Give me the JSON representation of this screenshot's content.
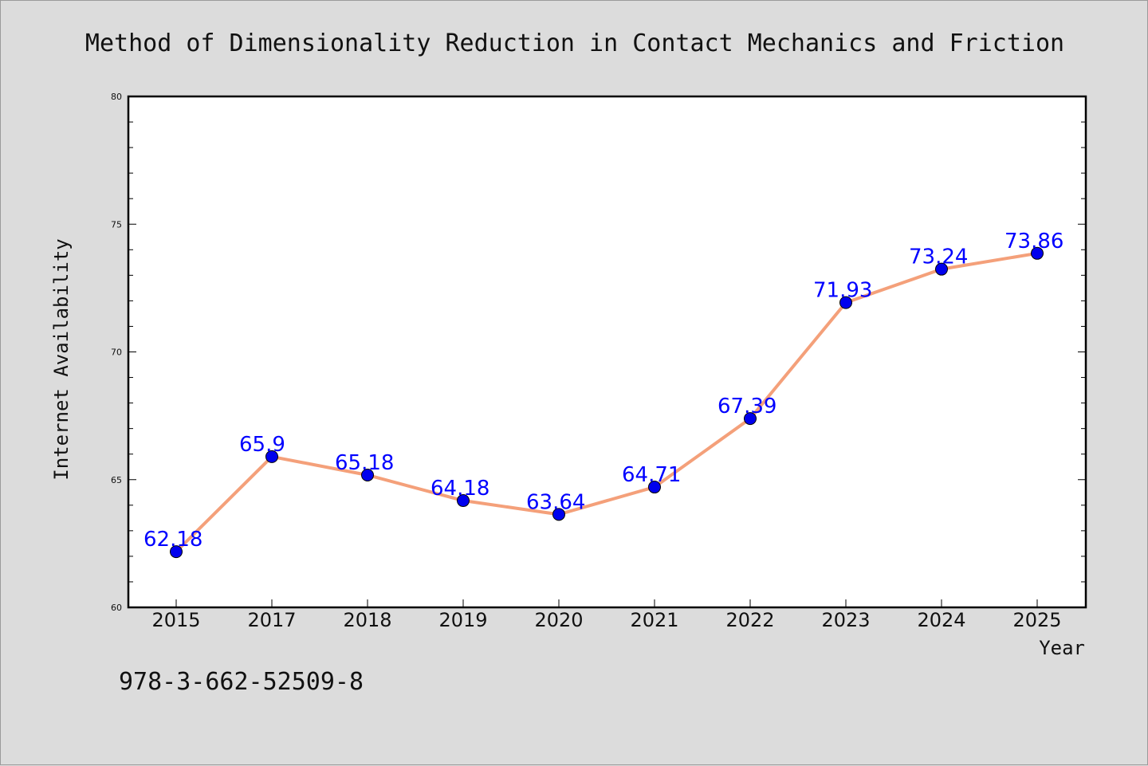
{
  "chart_data": {
    "type": "line",
    "title": "Method of Dimensionality Reduction in Contact Mechanics and Friction",
    "xlabel": "Year",
    "ylabel": "Internet Availability",
    "categories": [
      "2015",
      "2017",
      "2018",
      "2019",
      "2020",
      "2021",
      "2022",
      "2023",
      "2024",
      "2025"
    ],
    "values": [
      62.18,
      65.9,
      65.18,
      64.18,
      63.64,
      64.71,
      67.39,
      71.93,
      73.24,
      73.86
    ],
    "data_labels": [
      "62.18",
      "65.9",
      "65.18",
      "64.18",
      "63.64",
      "64.71",
      "67.39",
      "71.93",
      "73.24",
      "73.86"
    ],
    "ylim": [
      60,
      80
    ],
    "yticks": [
      60,
      65,
      70,
      75,
      80
    ],
    "grid": false,
    "line_color": "#f4a07a",
    "marker_color": "#0000ee",
    "label_color": "#0000ff"
  },
  "caption": "978-3-662-52509-8"
}
